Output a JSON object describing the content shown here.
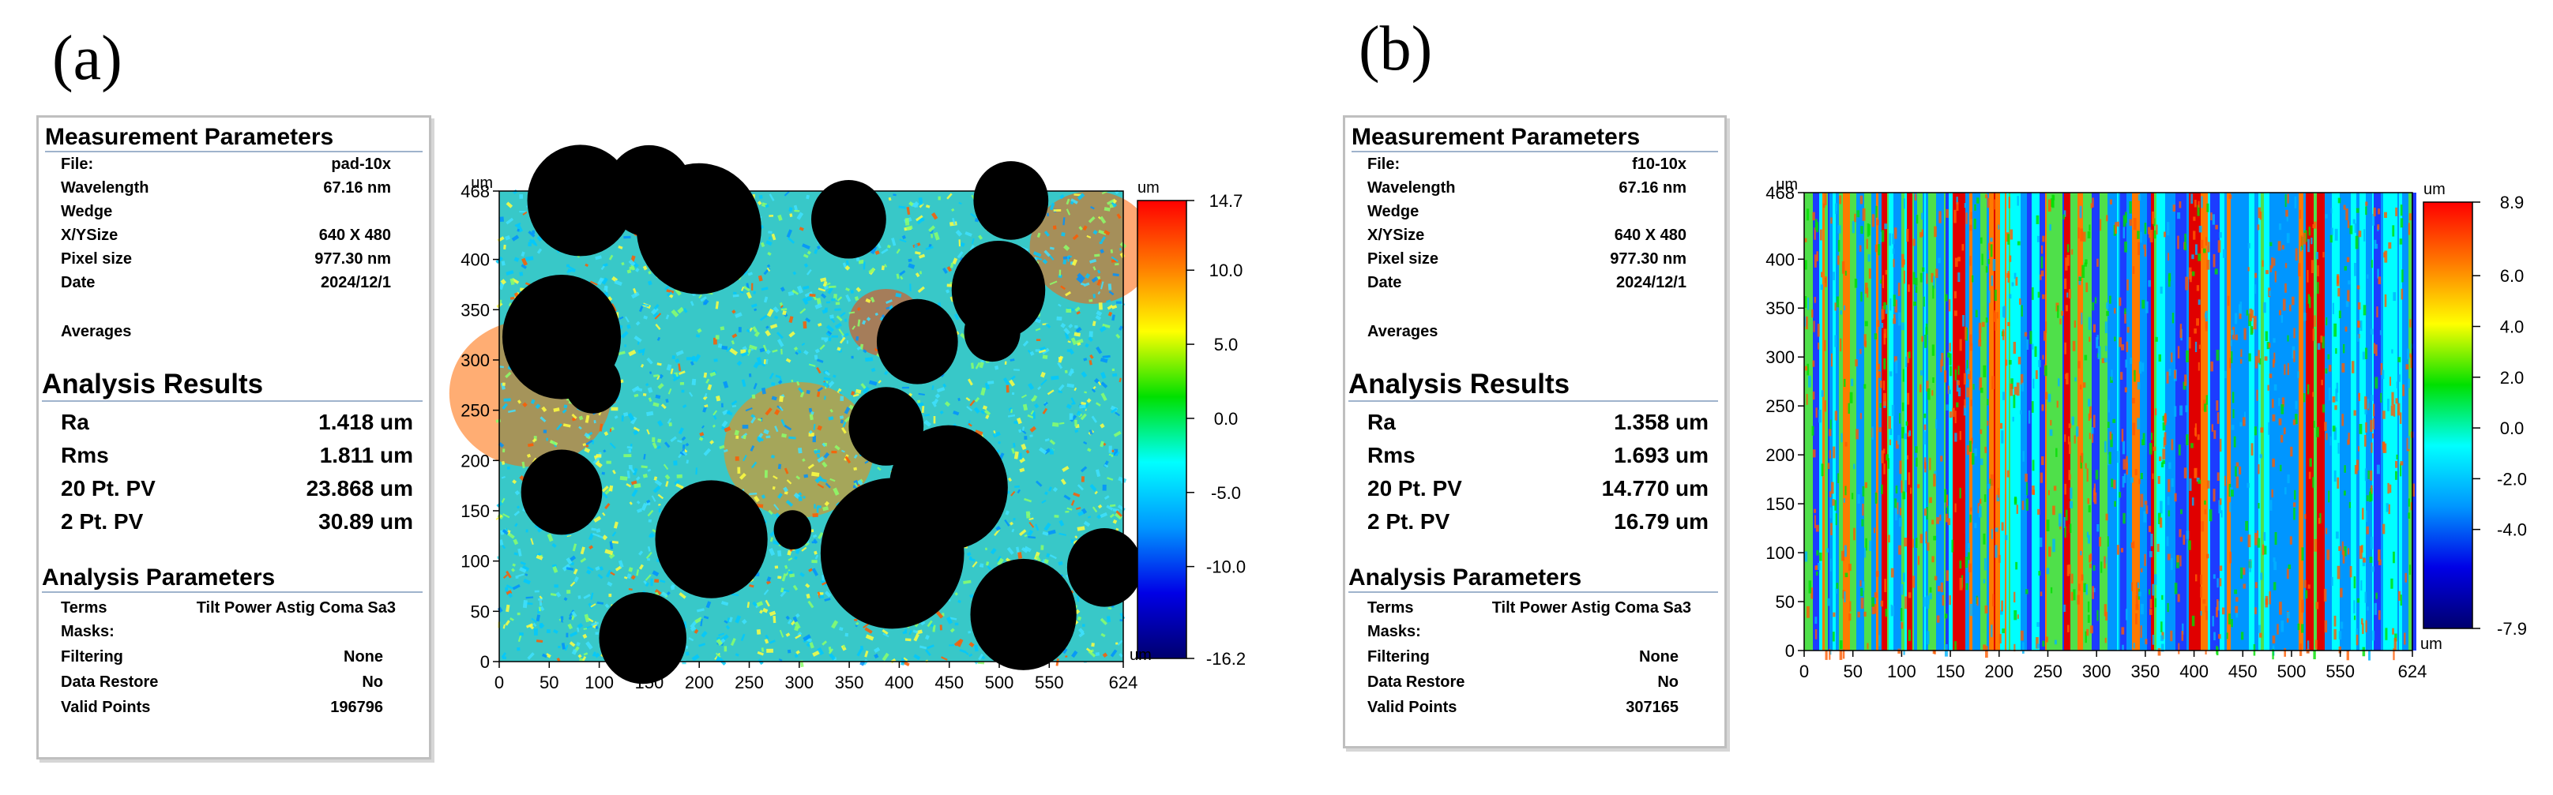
{
  "panels": [
    {
      "label": "(a)",
      "measurement": {
        "title": "Measurement Parameters",
        "rows": [
          {
            "k": "File:",
            "v": "pad-10x"
          },
          {
            "k": "Wavelength",
            "v": "67.16  nm"
          },
          {
            "k": "Wedge",
            "v": ""
          },
          {
            "k": "X/YSize",
            "v": "640 X 480"
          },
          {
            "k": "Pixel size",
            "v": "977.30  nm"
          },
          {
            "k": "Date",
            "v": "2024/12/1"
          }
        ],
        "averages": "Averages"
      },
      "results": {
        "title": "Analysis Results",
        "rows": [
          {
            "k": "Ra",
            "v": "1.418 um"
          },
          {
            "k": "Rms",
            "v": "1.811 um"
          },
          {
            "k": "20 Pt. PV",
            "v": "23.868 um"
          },
          {
            "k": "2 Pt. PV",
            "v": "30.89 um"
          }
        ]
      },
      "params": {
        "title": "Analysis Parameters",
        "terms_label": "Terms",
        "terms_value": "Tilt Power Astig Coma Sa3",
        "rows": [
          {
            "k": "Masks:",
            "v": ""
          },
          {
            "k": "Filtering",
            "v": "None"
          },
          {
            "k": "Data Restore",
            "v": "No"
          },
          {
            "k": "Valid Points",
            "v": "196796"
          }
        ]
      }
    },
    {
      "label": "(b)",
      "measurement": {
        "title": "Measurement Parameters",
        "rows": [
          {
            "k": "File:",
            "v": "f10-10x"
          },
          {
            "k": "Wavelength",
            "v": "67.16  nm"
          },
          {
            "k": "Wedge",
            "v": ""
          },
          {
            "k": "X/YSize",
            "v": "640 X 480"
          },
          {
            "k": "Pixel size",
            "v": "977.30  nm"
          },
          {
            "k": "Date",
            "v": "2024/12/1"
          }
        ],
        "averages": "Averages"
      },
      "results": {
        "title": "Analysis Results",
        "rows": [
          {
            "k": "Ra",
            "v": "1.358 um"
          },
          {
            "k": "Rms",
            "v": "1.693 um"
          },
          {
            "k": "20 Pt. PV",
            "v": "14.770 um"
          },
          {
            "k": "2 Pt. PV",
            "v": "16.79 um"
          }
        ]
      },
      "params": {
        "title": "Analysis Parameters",
        "terms_label": "Terms",
        "terms_value": "Tilt Power Astig Coma Sa3",
        "rows": [
          {
            "k": "Masks:",
            "v": ""
          },
          {
            "k": "Filtering",
            "v": "None"
          },
          {
            "k": "Data Restore",
            "v": "No"
          },
          {
            "k": "Valid Points",
            "v": "307165"
          }
        ]
      }
    }
  ],
  "chart_data": [
    {
      "type": "heatmap",
      "title": "",
      "x_unit": "um",
      "y_unit": "um",
      "xlim": [
        0,
        624
      ],
      "ylim": [
        0,
        468
      ],
      "x_ticks": [
        0,
        50,
        100,
        150,
        200,
        250,
        300,
        350,
        400,
        450,
        500,
        550,
        624
      ],
      "y_ticks": [
        0,
        50,
        100,
        150,
        200,
        250,
        300,
        350,
        400,
        468
      ],
      "colorbar": {
        "unit_top": "um",
        "unit_bottom": "um",
        "min": -16.2,
        "max": 14.7,
        "ticks": [
          -16.2,
          -10.0,
          -5.0,
          0.0,
          5.0,
          10.0,
          14.7
        ],
        "tick_labels": [
          "-16.2",
          "-10.0",
          "-5.0",
          "0.0",
          "5.0",
          "10.0",
          "14.7"
        ],
        "colors": [
          "#00006e",
          "#0000e6",
          "#0096ff",
          "#00ffff",
          "#00e000",
          "#ffff00",
          "#ff7a00",
          "#ff0000"
        ]
      },
      "pattern": "noisy surface with black invalid pits",
      "invalid_color": "#000000"
    },
    {
      "type": "heatmap",
      "title": "",
      "x_unit": "um",
      "y_unit": "um",
      "xlim": [
        0,
        624
      ],
      "ylim": [
        0,
        468
      ],
      "x_ticks": [
        0,
        50,
        100,
        150,
        200,
        250,
        300,
        350,
        400,
        450,
        500,
        550,
        624
      ],
      "y_ticks": [
        0,
        50,
        100,
        150,
        200,
        250,
        300,
        350,
        400,
        468
      ],
      "colorbar": {
        "unit_top": "um",
        "unit_bottom": "um",
        "min": -7.9,
        "max": 8.9,
        "ticks": [
          -7.9,
          -4.0,
          -2.0,
          0.0,
          2.0,
          4.0,
          6.0,
          8.9
        ],
        "tick_labels": [
          "-7.9",
          "-4.0",
          "-2.0",
          "0.0",
          "2.0",
          "4.0",
          "6.0",
          "8.9"
        ],
        "colors": [
          "#00006e",
          "#0000e6",
          "#0096ff",
          "#00ffff",
          "#00e000",
          "#ffff00",
          "#ff7a00",
          "#ff0000"
        ]
      },
      "pattern": "vertical streaks"
    }
  ]
}
